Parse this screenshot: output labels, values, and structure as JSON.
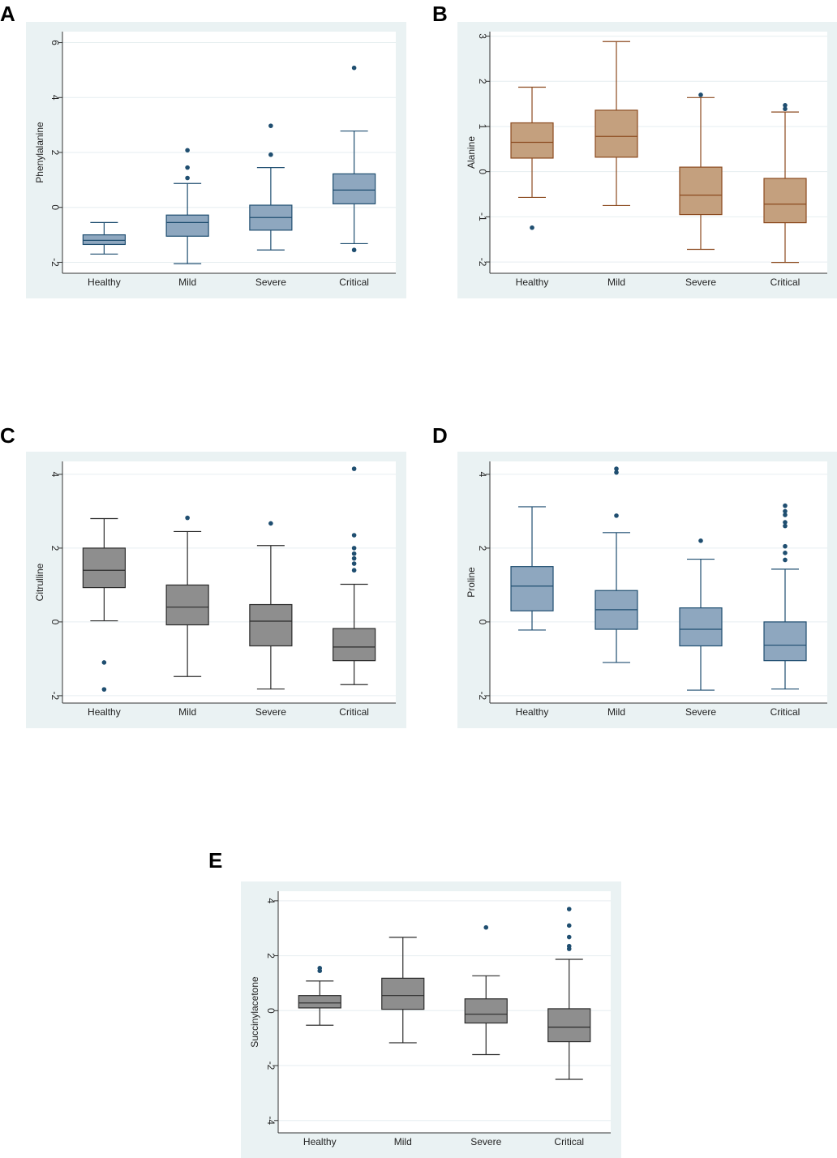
{
  "chart_data": [
    {
      "panel": "A",
      "type": "box",
      "ylabel": "Phenylalanine",
      "categories": [
        "Healthy",
        "Mild",
        "Severe",
        "Critical"
      ],
      "yticks": [
        -2,
        0,
        2,
        4,
        6
      ],
      "ylim": [
        -2.4,
        6.4
      ],
      "box_color": "#8ea7bf",
      "line_color": "#1f4e70",
      "median_color": "#1f4e70",
      "outlier_color": "#1f4e70",
      "boxes": [
        {
          "whisker_low": -1.7,
          "q1": -1.35,
          "median": -1.2,
          "q3": -1.0,
          "whisker_high": -0.55,
          "outliers": []
        },
        {
          "whisker_low": -2.05,
          "q1": -1.05,
          "median": -0.55,
          "q3": -0.28,
          "whisker_high": 0.87,
          "outliers": [
            1.07,
            1.45,
            2.08
          ]
        },
        {
          "whisker_low": -1.55,
          "q1": -0.83,
          "median": -0.37,
          "q3": 0.08,
          "whisker_high": 1.45,
          "outliers": [
            1.92,
            2.97
          ]
        },
        {
          "whisker_low": -1.32,
          "q1": 0.13,
          "median": 0.63,
          "q3": 1.22,
          "whisker_high": 2.78,
          "outliers": [
            -1.55,
            5.08
          ]
        }
      ]
    },
    {
      "panel": "B",
      "type": "box",
      "ylabel": "Alanine",
      "categories": [
        "Healthy",
        "Mild",
        "Severe",
        "Critical"
      ],
      "yticks": [
        -2,
        -1,
        0,
        1,
        2,
        3
      ],
      "ylim": [
        -2.25,
        3.1
      ],
      "box_color": "#c4a07e",
      "line_color": "#8b4a1f",
      "median_color": "#8b4a1f",
      "outlier_color": "#1f4e70",
      "boxes": [
        {
          "whisker_low": -0.57,
          "q1": 0.3,
          "median": 0.65,
          "q3": 1.08,
          "whisker_high": 1.87,
          "outliers": [
            -1.24
          ]
        },
        {
          "whisker_low": -0.75,
          "q1": 0.32,
          "median": 0.78,
          "q3": 1.36,
          "whisker_high": 2.88,
          "outliers": []
        },
        {
          "whisker_low": -1.72,
          "q1": -0.95,
          "median": -0.52,
          "q3": 0.1,
          "whisker_high": 1.64,
          "outliers": [
            1.7
          ]
        },
        {
          "whisker_low": -2.01,
          "q1": -1.13,
          "median": -0.72,
          "q3": -0.15,
          "whisker_high": 1.32,
          "outliers": [
            1.39,
            1.47
          ]
        }
      ]
    },
    {
      "panel": "C",
      "type": "box",
      "ylabel": "Citrulline",
      "categories": [
        "Healthy",
        "Mild",
        "Severe",
        "Critical"
      ],
      "yticks": [
        -2,
        0,
        2,
        4
      ],
      "ylim": [
        -2.2,
        4.35
      ],
      "box_color": "#8e8e8e",
      "line_color": "#2b2b2b",
      "median_color": "#2b2b2b",
      "outlier_color": "#1f4e70",
      "boxes": [
        {
          "whisker_low": 0.03,
          "q1": 0.93,
          "median": 1.4,
          "q3": 2.0,
          "whisker_high": 2.8,
          "outliers": [
            -1.1,
            -1.83
          ]
        },
        {
          "whisker_low": -1.48,
          "q1": -0.08,
          "median": 0.4,
          "q3": 1.0,
          "whisker_high": 2.45,
          "outliers": [
            2.82
          ]
        },
        {
          "whisker_low": -1.82,
          "q1": -0.65,
          "median": 0.02,
          "q3": 0.47,
          "whisker_high": 2.07,
          "outliers": [
            2.67
          ]
        },
        {
          "whisker_low": -1.7,
          "q1": -1.05,
          "median": -0.68,
          "q3": -0.18,
          "whisker_high": 1.02,
          "outliers": [
            1.4,
            1.58,
            1.72,
            1.85,
            2.0,
            2.35,
            4.15
          ]
        }
      ]
    },
    {
      "panel": "D",
      "type": "box",
      "ylabel": "Proline",
      "categories": [
        "Healthy",
        "Mild",
        "Severe",
        "Critical"
      ],
      "yticks": [
        -2,
        0,
        2,
        4
      ],
      "ylim": [
        -2.2,
        4.35
      ],
      "box_color": "#8ea7bf",
      "line_color": "#1f4e70",
      "median_color": "#1f4e70",
      "outlier_color": "#1f4e70",
      "boxes": [
        {
          "whisker_low": -0.22,
          "q1": 0.3,
          "median": 0.97,
          "q3": 1.5,
          "whisker_high": 3.12,
          "outliers": []
        },
        {
          "whisker_low": -1.1,
          "q1": -0.2,
          "median": 0.33,
          "q3": 0.85,
          "whisker_high": 2.42,
          "outliers": [
            2.88,
            4.05,
            4.15
          ]
        },
        {
          "whisker_low": -1.85,
          "q1": -0.65,
          "median": -0.2,
          "q3": 0.38,
          "whisker_high": 1.7,
          "outliers": [
            2.2
          ]
        },
        {
          "whisker_low": -1.82,
          "q1": -1.05,
          "median": -0.63,
          "q3": 0.0,
          "whisker_high": 1.43,
          "outliers": [
            1.68,
            1.87,
            2.05,
            2.6,
            2.7,
            2.9,
            3.0,
            3.15
          ]
        }
      ]
    },
    {
      "panel": "E",
      "type": "box",
      "ylabel": "Succinylacetone",
      "categories": [
        "Healthy",
        "Mild",
        "Severe",
        "Critical"
      ],
      "yticks": [
        -4,
        -2,
        0,
        2,
        4
      ],
      "ylim": [
        -4.45,
        4.35
      ],
      "box_color": "#8e8e8e",
      "line_color": "#2b2b2b",
      "median_color": "#2b2b2b",
      "outlier_color": "#1f4e70",
      "boxes": [
        {
          "whisker_low": -0.53,
          "q1": 0.1,
          "median": 0.28,
          "q3": 0.55,
          "whisker_high": 1.08,
          "outliers": [
            1.45,
            1.55
          ]
        },
        {
          "whisker_low": -1.17,
          "q1": 0.05,
          "median": 0.55,
          "q3": 1.18,
          "whisker_high": 2.67,
          "outliers": []
        },
        {
          "whisker_low": -1.6,
          "q1": -0.45,
          "median": -0.13,
          "q3": 0.43,
          "whisker_high": 1.27,
          "outliers": [
            3.03
          ]
        },
        {
          "whisker_low": -2.5,
          "q1": -1.13,
          "median": -0.6,
          "q3": 0.07,
          "whisker_high": 1.87,
          "outliers": [
            2.25,
            2.35,
            2.68,
            3.1,
            3.7
          ]
        }
      ]
    }
  ]
}
